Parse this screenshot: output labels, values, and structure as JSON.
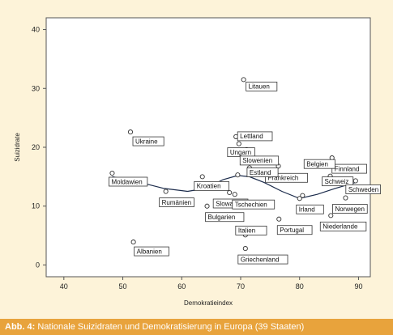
{
  "chart_data": {
    "type": "scatter",
    "xlabel": "Demokratieindex",
    "ylabel": "Suizidrate",
    "xlim": [
      37,
      92
    ],
    "ylim": [
      -2,
      42
    ],
    "xticks": [
      40,
      50,
      60,
      70,
      80,
      90
    ],
    "yticks": [
      0,
      10,
      20,
      30,
      40
    ],
    "grid": false,
    "points": [
      {
        "name": "Litauen",
        "x": 70.5,
        "y": 31.5
      },
      {
        "name": "Ukraine",
        "x": 51.3,
        "y": 22.6
      },
      {
        "name": "Lettland",
        "x": 69.2,
        "y": 21.8
      },
      {
        "name": "Ungarn",
        "x": 69.7,
        "y": 20.6
      },
      {
        "name": "Slowenien",
        "x": 71.0,
        "y": 19.6
      },
      {
        "name": "Finnland",
        "x": 85.5,
        "y": 18.2
      },
      {
        "name": "Belgien",
        "x": 82.0,
        "y": 17.5
      },
      {
        "name": "Frankreich",
        "x": 76.4,
        "y": 16.8
      },
      {
        "name": "Estland",
        "x": 71.5,
        "y": 16.5
      },
      {
        "name": "Moldawien",
        "x": 48.2,
        "y": 15.6
      },
      {
        "name": "Schweiz",
        "x": 85.2,
        "y": 15.1
      },
      {
        "name": "Kroatien",
        "x": 63.5,
        "y": 15.0
      },
      {
        "name": "Schweden",
        "x": 89.5,
        "y": 14.3
      },
      {
        "name": "Rumänien",
        "x": 57.3,
        "y": 12.5
      },
      {
        "name": "Slowakei",
        "x": 68.1,
        "y": 12.3
      },
      {
        "name": "Tschechien",
        "x": 69.0,
        "y": 12.0
      },
      {
        "name": "Irland",
        "x": 80.0,
        "y": 11.3
      },
      {
        "name": "Norwegen",
        "x": 87.8,
        "y": 11.4
      },
      {
        "name": "Bulgarien",
        "x": 64.3,
        "y": 10.0
      },
      {
        "name": "Niederlande",
        "x": 85.3,
        "y": 8.4
      },
      {
        "name": "Portugal",
        "x": 76.5,
        "y": 7.8
      },
      {
        "name": "Italien",
        "x": 70.8,
        "y": 5.1
      },
      {
        "name": "Albanien",
        "x": 51.8,
        "y": 3.9
      },
      {
        "name": "Griechenland",
        "x": 70.8,
        "y": 2.8
      },
      {
        "name": "",
        "x": 66.5,
        "y": 10.3
      },
      {
        "name": "",
        "x": 69.5,
        "y": 15.3
      },
      {
        "name": "",
        "x": 80.5,
        "y": 11.8
      },
      {
        "name": "",
        "x": 89.3,
        "y": 16.0
      }
    ],
    "trend_line": {
      "x": [
        48.2,
        53,
        57,
        61,
        64,
        67,
        69.5,
        71.5,
        74,
        77,
        80,
        83,
        86,
        89.5
      ],
      "y": [
        15.0,
        14.0,
        13.0,
        12.5,
        13.0,
        14.5,
        15.2,
        15.0,
        14.0,
        12.5,
        11.3,
        12.0,
        13.0,
        14.0
      ]
    }
  },
  "caption": {
    "prefix": "Abb. 4:",
    "text": " Nationale Suizidraten und Demokratisierung in Europa (39 Staaten)"
  }
}
